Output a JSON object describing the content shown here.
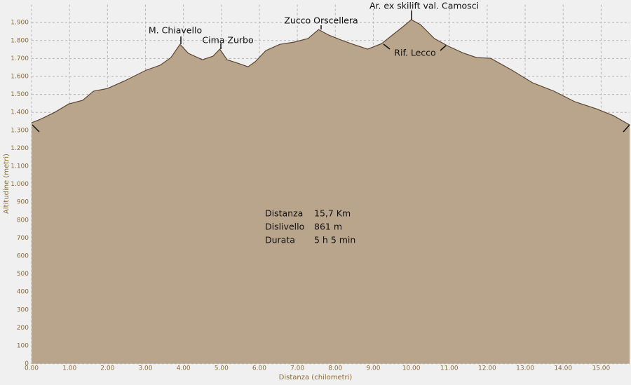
{
  "chart_data": {
    "type": "area",
    "x_label": "Distanza (chilometri)",
    "y_label": "Altitudine (metri)",
    "x": [
      0,
      0.24,
      0.61,
      0.98,
      1.35,
      1.63,
      2.0,
      2.46,
      3.02,
      3.39,
      3.67,
      3.91,
      4.13,
      4.5,
      4.78,
      4.96,
      5.15,
      5.43,
      5.7,
      5.89,
      6.17,
      6.54,
      6.91,
      7.28,
      7.56,
      7.83,
      8.2,
      8.57,
      8.85,
      9.22,
      9.5,
      9.78,
      10.0,
      10.24,
      10.61,
      10.98,
      11.35,
      11.72,
      12.09,
      12.65,
      13.2,
      13.76,
      14.31,
      14.87,
      15.33,
      15.75
    ],
    "values": [
      1342,
      1362,
      1400,
      1447,
      1467,
      1518,
      1533,
      1576,
      1635,
      1663,
      1705,
      1779,
      1729,
      1693,
      1713,
      1752,
      1693,
      1674,
      1654,
      1682,
      1744,
      1779,
      1791,
      1811,
      1861,
      1830,
      1799,
      1772,
      1752,
      1783,
      1830,
      1877,
      1916,
      1889,
      1811,
      1768,
      1732,
      1705,
      1701,
      1635,
      1564,
      1518,
      1459,
      1420,
      1381,
      1330
    ],
    "color": "#b9a58c",
    "line_color": "#5a4632",
    "xlim": [
      0,
      15.75
    ],
    "ylim": [
      0,
      2000
    ],
    "xticks": [
      {
        "value": 0,
        "label": "0.00"
      },
      {
        "value": 1,
        "label": "1.00"
      },
      {
        "value": 2,
        "label": "2.00"
      },
      {
        "value": 3,
        "label": "3.00"
      },
      {
        "value": 4,
        "label": "4.00"
      },
      {
        "value": 5,
        "label": "5.00"
      },
      {
        "value": 6,
        "label": "6.00"
      },
      {
        "value": 7,
        "label": "7.00"
      },
      {
        "value": 8,
        "label": "8.00"
      },
      {
        "value": 9,
        "label": "9.00"
      },
      {
        "value": 10,
        "label": "10.00"
      },
      {
        "value": 11,
        "label": "11.00"
      },
      {
        "value": 12,
        "label": "12.00"
      },
      {
        "value": 13,
        "label": "13.00"
      },
      {
        "value": 14,
        "label": "14.00"
      },
      {
        "value": 15,
        "label": "15.00"
      }
    ],
    "yticks": [
      0,
      100,
      200,
      300,
      400,
      500,
      600,
      700,
      800,
      900,
      {
        "value": 1000,
        "label": "1.000"
      },
      {
        "value": 1100,
        "label": "1.100"
      },
      {
        "value": 1200,
        "label": "1.200"
      },
      {
        "value": 1300,
        "label": "1.300"
      },
      {
        "value": 1400,
        "label": "1.400"
      },
      {
        "value": 1500,
        "label": "1.500"
      },
      {
        "value": 1600,
        "label": "1.600"
      },
      {
        "value": 1700,
        "label": "1.700"
      },
      {
        "value": 1800,
        "label": "1.800"
      },
      {
        "value": 1900,
        "label": "1.900"
      }
    ],
    "grid": true,
    "annotations": [
      "M. Chiavello",
      "Cima Zurbo",
      "Zucco Orscellera",
      "Ar. ex skilift val. Camosci",
      "Rif. Lecco"
    ],
    "info": [
      [
        "Distanza",
        "15,7 Km"
      ],
      [
        "Dislivello",
        "861 m"
      ],
      [
        "Durata",
        "5 h   5 min"
      ]
    ]
  }
}
